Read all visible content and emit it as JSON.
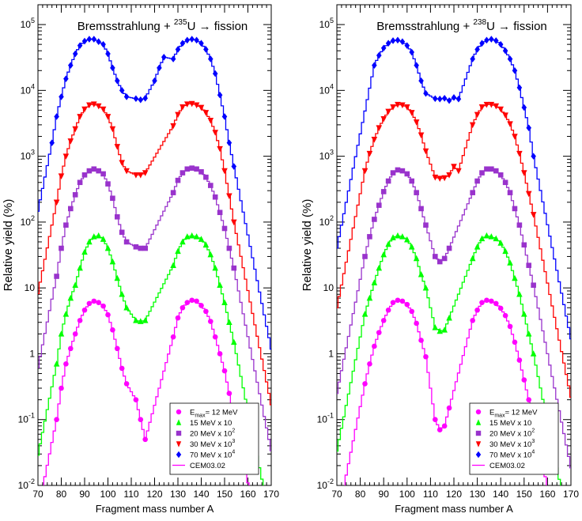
{
  "chart_data": [
    {
      "type": "scatter",
      "title_text": "Bremsstrahlung + ",
      "title_sup": "235",
      "title_tail": "U → fission",
      "xlabel": "Fragment mass number A",
      "ylabel": "Relative yield (%)",
      "xlim": [
        70,
        170
      ],
      "ylim": [
        0.01,
        200000
      ],
      "log_y": true,
      "x_ticks": [
        "70",
        "80",
        "90",
        "100",
        "110",
        "120",
        "130",
        "140",
        "150",
        "160",
        "170"
      ],
      "y_ticks": [
        {
          "base": "10",
          "exp": "-2"
        },
        {
          "base": "10",
          "exp": "-1"
        },
        {
          "base": "1",
          "exp": ""
        },
        {
          "base": "10",
          "exp": ""
        },
        {
          "base": "10",
          "exp": "2"
        },
        {
          "base": "10",
          "exp": "3"
        },
        {
          "base": "10",
          "exp": "4"
        },
        {
          "base": "10",
          "exp": "5"
        }
      ],
      "legend_position": "bottom-right",
      "series": [
        {
          "label": "E",
          "sub": "max",
          "label_tail": "= 12 MeV",
          "marker": "circle",
          "color": "#ff00ff",
          "x": [
            78,
            80,
            82,
            84,
            86,
            88,
            90,
            92,
            94,
            96,
            98,
            100,
            102,
            104,
            106,
            108,
            112,
            114,
            116,
            128,
            130,
            132,
            134,
            136,
            138,
            140,
            142,
            144,
            146,
            148,
            150,
            152,
            154
          ],
          "y": [
            0.1,
            0.3,
            0.7,
            1.2,
            2,
            3.2,
            4.6,
            5.8,
            6.3,
            6.0,
            5.3,
            3.9,
            2.3,
            1.2,
            0.6,
            0.35,
            0.2,
            0.1,
            0.05,
            1.8,
            3.5,
            5.0,
            6.0,
            6.5,
            6.3,
            5.4,
            4.4,
            3.1,
            1.8,
            1.0,
            0.55,
            0.25,
            0.12
          ]
        },
        {
          "label": "15 MeV x 10",
          "marker": "triangle-up",
          "color": "#00ff00",
          "x": [
            78,
            80,
            82,
            84,
            86,
            88,
            90,
            92,
            94,
            96,
            98,
            100,
            102,
            104,
            106,
            108,
            112,
            114,
            116,
            128,
            130,
            132,
            134,
            136,
            138,
            140,
            142,
            144,
            146,
            148,
            150,
            152,
            154
          ],
          "y": [
            0.7,
            2,
            4,
            7,
            11,
            20,
            35,
            50,
            60,
            62,
            55,
            40,
            25,
            14,
            8,
            5,
            3.2,
            3.1,
            3.2,
            22,
            36,
            50,
            60,
            62,
            60,
            55,
            45,
            32,
            20,
            11,
            6,
            3,
            1.5
          ]
        },
        {
          "label": "20 MeV x 10",
          "label_sup": "2",
          "marker": "square",
          "color": "#9933cc",
          "x": [
            78,
            80,
            82,
            84,
            86,
            88,
            90,
            92,
            94,
            96,
            98,
            100,
            102,
            104,
            106,
            108,
            112,
            114,
            116,
            128,
            130,
            132,
            134,
            136,
            138,
            140,
            142,
            144,
            146,
            148,
            150,
            152,
            154
          ],
          "y": [
            15,
            40,
            90,
            160,
            260,
            400,
            520,
            600,
            640,
            600,
            540,
            380,
            230,
            120,
            70,
            50,
            42,
            40,
            40,
            280,
            430,
            560,
            640,
            660,
            640,
            580,
            480,
            360,
            240,
            140,
            80,
            40,
            20
          ]
        },
        {
          "label": "30 MeV x 10",
          "label_sup": "3",
          "marker": "triangle-down",
          "color": "#ff0000",
          "x": [
            78,
            80,
            82,
            84,
            86,
            88,
            90,
            92,
            94,
            96,
            98,
            100,
            102,
            104,
            106,
            108,
            112,
            114,
            116,
            128,
            130,
            132,
            134,
            136,
            138,
            140,
            142,
            144,
            146,
            148,
            150,
            152,
            154
          ],
          "y": [
            200,
            500,
            1000,
            1700,
            2600,
            4000,
            5200,
            6000,
            6200,
            5800,
            5200,
            4000,
            2600,
            1400,
            800,
            600,
            520,
            520,
            560,
            2900,
            4300,
            5600,
            6200,
            6300,
            6000,
            5500,
            4600,
            3500,
            2300,
            1300,
            600,
            250,
            100
          ]
        },
        {
          "label": "70 MeV x 10",
          "label_sup": "4",
          "marker": "diamond",
          "color": "#0000ff",
          "x": [
            76,
            78,
            80,
            82,
            84,
            86,
            88,
            90,
            92,
            94,
            96,
            98,
            100,
            102,
            104,
            106,
            108,
            112,
            114,
            116,
            120,
            122,
            124,
            128,
            130,
            132,
            134,
            136,
            138,
            140,
            142,
            144,
            146,
            148,
            150,
            152,
            154
          ],
          "y": [
            1600,
            4000,
            8000,
            15000,
            24000,
            36000,
            48000,
            56000,
            60000,
            60000,
            55000,
            50000,
            36000,
            22000,
            14000,
            10000,
            8000,
            7500,
            7200,
            7600,
            14000,
            22000,
            32000,
            30000,
            42000,
            52000,
            58000,
            60000,
            58000,
            52000,
            42000,
            30000,
            18000,
            8500,
            4000,
            1600,
            700
          ]
        },
        {
          "label": "CEM03.02",
          "marker": "line",
          "color": "#ff00ff",
          "x": [],
          "y": []
        }
      ]
    },
    {
      "type": "scatter",
      "title_text": "Bremsstrahlung + ",
      "title_sup": "238",
      "title_tail": "U → fission",
      "xlabel": "Fragment mass number A",
      "ylabel": "Relative yield (%)",
      "xlim": [
        70,
        170
      ],
      "ylim": [
        0.01,
        200000
      ],
      "log_y": true,
      "x_ticks": [
        "70",
        "80",
        "90",
        "100",
        "110",
        "120",
        "130",
        "140",
        "150",
        "160",
        "170"
      ],
      "y_ticks": [
        {
          "base": "10",
          "exp": "-2"
        },
        {
          "base": "10",
          "exp": "-1"
        },
        {
          "base": "1",
          "exp": ""
        },
        {
          "base": "10",
          "exp": ""
        },
        {
          "base": "10",
          "exp": "2"
        },
        {
          "base": "10",
          "exp": "3"
        },
        {
          "base": "10",
          "exp": "4"
        },
        {
          "base": "10",
          "exp": "5"
        }
      ],
      "legend_position": "bottom-right",
      "series": [
        {
          "label": "E",
          "sub": "max",
          "label_tail": "= 12 MeV",
          "marker": "circle",
          "color": "#ff00ff",
          "x": [
            82,
            84,
            86,
            88,
            90,
            92,
            94,
            96,
            98,
            100,
            102,
            104,
            106,
            108,
            112,
            114,
            116,
            118,
            128,
            130,
            132,
            134,
            136,
            138,
            140,
            142,
            144,
            146,
            148,
            150,
            152,
            154
          ],
          "y": [
            0.35,
            0.7,
            1.3,
            2.1,
            3.2,
            4.6,
            6.0,
            6.5,
            6.3,
            5.6,
            4.4,
            2.9,
            1.6,
            0.9,
            0.1,
            0.07,
            0.08,
            0.15,
            3.2,
            4.6,
            6.0,
            6.5,
            6.3,
            5.8,
            4.9,
            3.8,
            2.6,
            1.5,
            0.8,
            0.4,
            0.2,
            0.1
          ]
        },
        {
          "label": "15 MeV x 10",
          "marker": "triangle-up",
          "color": "#00ff00",
          "x": [
            82,
            84,
            86,
            88,
            90,
            92,
            94,
            96,
            98,
            100,
            102,
            104,
            106,
            108,
            112,
            114,
            116,
            118,
            128,
            130,
            132,
            134,
            136,
            138,
            140,
            142,
            144,
            146,
            148,
            150,
            152,
            154
          ],
          "y": [
            4,
            7,
            12,
            20,
            32,
            46,
            58,
            62,
            60,
            54,
            42,
            28,
            16,
            10,
            2.5,
            2.2,
            2.3,
            3.5,
            28,
            42,
            56,
            62,
            60,
            56,
            48,
            36,
            24,
            14,
            8,
            4,
            2,
            1
          ]
        },
        {
          "label": "20 MeV x 10",
          "label_sup": "2",
          "marker": "square",
          "color": "#9933cc",
          "x": [
            82,
            84,
            86,
            88,
            90,
            92,
            94,
            96,
            98,
            100,
            102,
            104,
            106,
            108,
            112,
            114,
            116,
            118,
            128,
            130,
            132,
            134,
            136,
            138,
            140,
            142,
            144,
            146,
            148,
            150,
            152,
            154
          ],
          "y": [
            30,
            60,
            110,
            180,
            290,
            420,
            560,
            620,
            600,
            540,
            420,
            280,
            160,
            90,
            30,
            25,
            28,
            40,
            280,
            420,
            560,
            640,
            640,
            600,
            520,
            400,
            280,
            160,
            90,
            45,
            22,
            11
          ]
        },
        {
          "label": "30 MeV x 10",
          "label_sup": "3",
          "marker": "triangle-down",
          "color": "#ff0000",
          "x": [
            82,
            84,
            86,
            88,
            90,
            92,
            94,
            96,
            98,
            100,
            102,
            104,
            106,
            108,
            112,
            114,
            116,
            118,
            120,
            122,
            128,
            130,
            132,
            134,
            136,
            138,
            140,
            142,
            144,
            146,
            148,
            150,
            152,
            154
          ],
          "y": [
            600,
            1100,
            1800,
            2700,
            3700,
            4800,
            5600,
            6100,
            6000,
            5600,
            4600,
            3300,
            2100,
            1200,
            480,
            460,
            470,
            520,
            700,
            600,
            3000,
            4300,
            5600,
            6100,
            6100,
            5800,
            5200,
            4200,
            3100,
            2000,
            1100,
            560,
            270,
            130
          ]
        },
        {
          "label": "70 MeV x 10",
          "label_sup": "4",
          "marker": "diamond",
          "color": "#0000ff",
          "x": [
            86,
            88,
            90,
            92,
            94,
            96,
            98,
            100,
            102,
            104,
            106,
            108,
            112,
            114,
            116,
            118,
            120,
            122,
            128,
            130,
            132,
            134,
            136,
            138,
            140,
            142,
            144,
            146,
            148,
            150,
            152,
            154
          ],
          "y": [
            24000,
            34000,
            44000,
            52000,
            57000,
            58000,
            55000,
            48000,
            38000,
            24000,
            14000,
            9000,
            7500,
            7400,
            7600,
            7000,
            7800,
            7400,
            30000,
            42000,
            52000,
            58000,
            60000,
            57000,
            50000,
            40000,
            30000,
            20000,
            11000,
            5500,
            2700,
            1000
          ]
        },
        {
          "label": "CEM03.02",
          "marker": "line",
          "color": "#ff00ff",
          "x": [],
          "y": []
        }
      ]
    }
  ]
}
